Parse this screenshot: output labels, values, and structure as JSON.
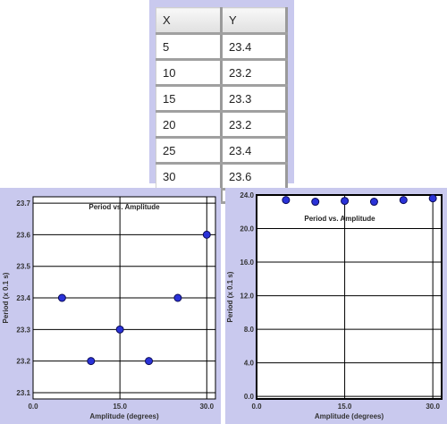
{
  "table": {
    "headers": [
      "X",
      "Y"
    ],
    "rows": [
      [
        "5",
        "23.4"
      ],
      [
        "10",
        "23.2"
      ],
      [
        "15",
        "23.3"
      ],
      [
        "20",
        "23.2"
      ],
      [
        "25",
        "23.4"
      ],
      [
        "30",
        "23.6"
      ]
    ]
  },
  "colors": {
    "panel_bg": "#c9c9ee",
    "point_fill": "#2a32d8",
    "point_stroke": "#0a0a55",
    "grid": "#000000"
  },
  "chart_data": [
    {
      "type": "scatter",
      "title": "Period vs. Amplitude",
      "xlabel": "Amplitude (degrees)",
      "ylabel": "Period (x 0.1 s)",
      "xlim": [
        0,
        31.5
      ],
      "ylim": [
        23.08,
        23.72
      ],
      "x_ticks": [
        0.0,
        15.0,
        30.0
      ],
      "x_tick_labels": [
        "0.0",
        "15.0",
        "30.0"
      ],
      "y_ticks": [
        23.1,
        23.2,
        23.3,
        23.4,
        23.5,
        23.6,
        23.7
      ],
      "y_tick_labels": [
        "23.1",
        "23.2",
        "23.3",
        "23.4",
        "23.5",
        "23.6",
        "23.7"
      ],
      "grid": true,
      "x": [
        5,
        10,
        15,
        20,
        25,
        30
      ],
      "y": [
        23.4,
        23.2,
        23.3,
        23.2,
        23.4,
        23.6
      ]
    },
    {
      "type": "scatter",
      "title": "Period vs. Amplitude",
      "xlabel": "Amplitude (degrees)",
      "ylabel": "Period (x 0.1 s)",
      "xlim": [
        0,
        31.5
      ],
      "ylim": [
        -0.3,
        24.0
      ],
      "x_ticks": [
        0.0,
        15.0,
        30.0
      ],
      "x_tick_labels": [
        "0.0",
        "15.0",
        "30.0"
      ],
      "y_ticks": [
        0.0,
        4.0,
        8.0,
        12.0,
        16.0,
        20.0,
        24.0
      ],
      "y_tick_labels": [
        "0.0",
        "4.0",
        "8.0",
        "12.0",
        "16.0",
        "20.0",
        "24.0"
      ],
      "grid": true,
      "x": [
        5,
        10,
        15,
        20,
        25,
        30
      ],
      "y": [
        23.4,
        23.2,
        23.3,
        23.2,
        23.4,
        23.6
      ]
    }
  ]
}
